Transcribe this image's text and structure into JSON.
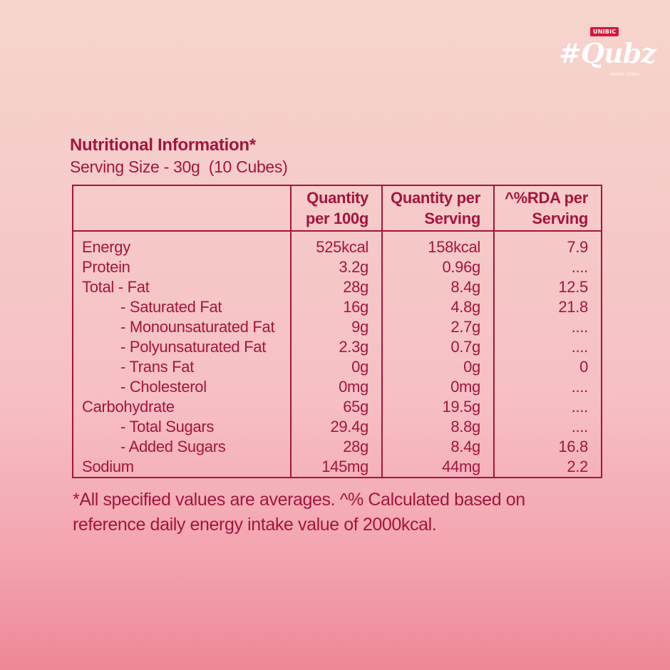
{
  "brand": {
    "badge": "UNIBIC",
    "wordmark": "#Qubz",
    "tagline": "WAFER CUBES"
  },
  "panel": {
    "title": "Nutritional Information*",
    "serving": "Serving Size - 30g  (10 Cubes)"
  },
  "table": {
    "headers": [
      "",
      "Quantity per 100g",
      "Quantity per Serving",
      "^%RDA per Serving"
    ],
    "rows": [
      {
        "name": "Energy",
        "per100": "525kcal",
        "perServing": "158kcal",
        "rda": "7.9"
      },
      {
        "name": "Protein",
        "per100": "3.2g",
        "perServing": "0.96g",
        "rda": "...."
      },
      {
        "name": "Total - Fat",
        "per100": "28g",
        "perServing": "8.4g",
        "rda": "12.5"
      },
      {
        "name": "- Saturated Fat",
        "per100": "16g",
        "perServing": "4.8g",
        "rda": "21.8"
      },
      {
        "name": "- Monounsaturated Fat",
        "per100": "9g",
        "perServing": "2.7g",
        "rda": "...."
      },
      {
        "name": "- Polyunsaturated Fat",
        "per100": "2.3g",
        "perServing": "0.7g",
        "rda": "...."
      },
      {
        "name": "- Trans Fat",
        "per100": "0g",
        "perServing": "0g",
        "rda": "0"
      },
      {
        "name": "- Cholesterol",
        "per100": "0mg",
        "perServing": "0mg",
        "rda": "...."
      },
      {
        "name": "Carbohydrate",
        "per100": "65g",
        "perServing": "19.5g",
        "rda": "...."
      },
      {
        "name": "- Total Sugars",
        "per100": "29.4g",
        "perServing": "8.8g",
        "rda": "...."
      },
      {
        "name": "- Added Sugars",
        "per100": "28g",
        "perServing": "8.4g",
        "rda": "16.8"
      },
      {
        "name": "Sodium",
        "per100": "145mg",
        "perServing": "44mg",
        "rda": "2.2"
      }
    ]
  },
  "footnote": "*All specified values are averages. ^% Calculated based on reference daily energy intake value of 2000kcal.",
  "colors": {
    "text": "#a3153e",
    "badge": "#d8173d",
    "background_top": "#f6d5cc",
    "background_bottom": "#ee8797"
  }
}
